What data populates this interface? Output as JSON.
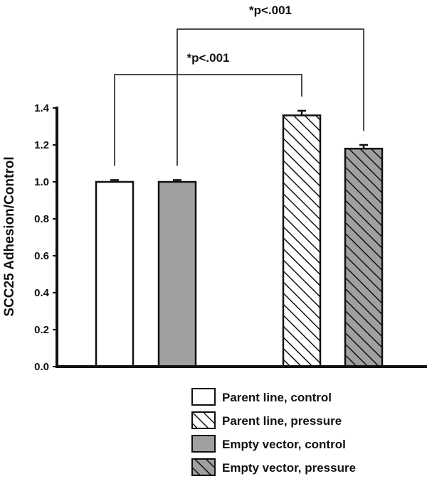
{
  "chart_data": {
    "type": "bar",
    "title": "",
    "xlabel": "",
    "ylabel": "SCC25 Adhesion/Control",
    "ylim": [
      0,
      1.4
    ],
    "yticks": [
      "0.0",
      "0.2",
      "0.4",
      "0.6",
      "0.8",
      "1.0",
      "1.2",
      "1.4"
    ],
    "grid": false,
    "legend_position": "bottom-right",
    "series": [
      {
        "name": "Parent line, control",
        "value": 1.0,
        "error": 0.01,
        "fill": "#ffffff",
        "pattern": "none"
      },
      {
        "name": "Empty vector, control",
        "value": 1.0,
        "error": 0.01,
        "fill": "#a0a0a0",
        "pattern": "none"
      },
      {
        "name": "Parent line, pressure",
        "value": 1.36,
        "error": 0.025,
        "fill": "#ffffff",
        "pattern": "hatch"
      },
      {
        "name": "Empty vector, pressure",
        "value": 1.18,
        "error": 0.02,
        "fill": "#a0a0a0",
        "pattern": "hatch"
      }
    ],
    "annotations": [
      {
        "text": "*p<.001",
        "from": "Parent line, control",
        "to": "Parent line, pressure"
      },
      {
        "text": "*p<.001",
        "from": "Empty vector, control",
        "to": "Empty vector, pressure"
      }
    ],
    "legend": [
      {
        "label": "Parent line, control",
        "fill": "#ffffff",
        "pattern": "none"
      },
      {
        "label": "Parent line, pressure",
        "fill": "#ffffff",
        "pattern": "hatch"
      },
      {
        "label": "Empty vector, control",
        "fill": "#a0a0a0",
        "pattern": "none"
      },
      {
        "label": "Empty vector, pressure",
        "fill": "#a0a0a0",
        "pattern": "hatch"
      }
    ]
  }
}
